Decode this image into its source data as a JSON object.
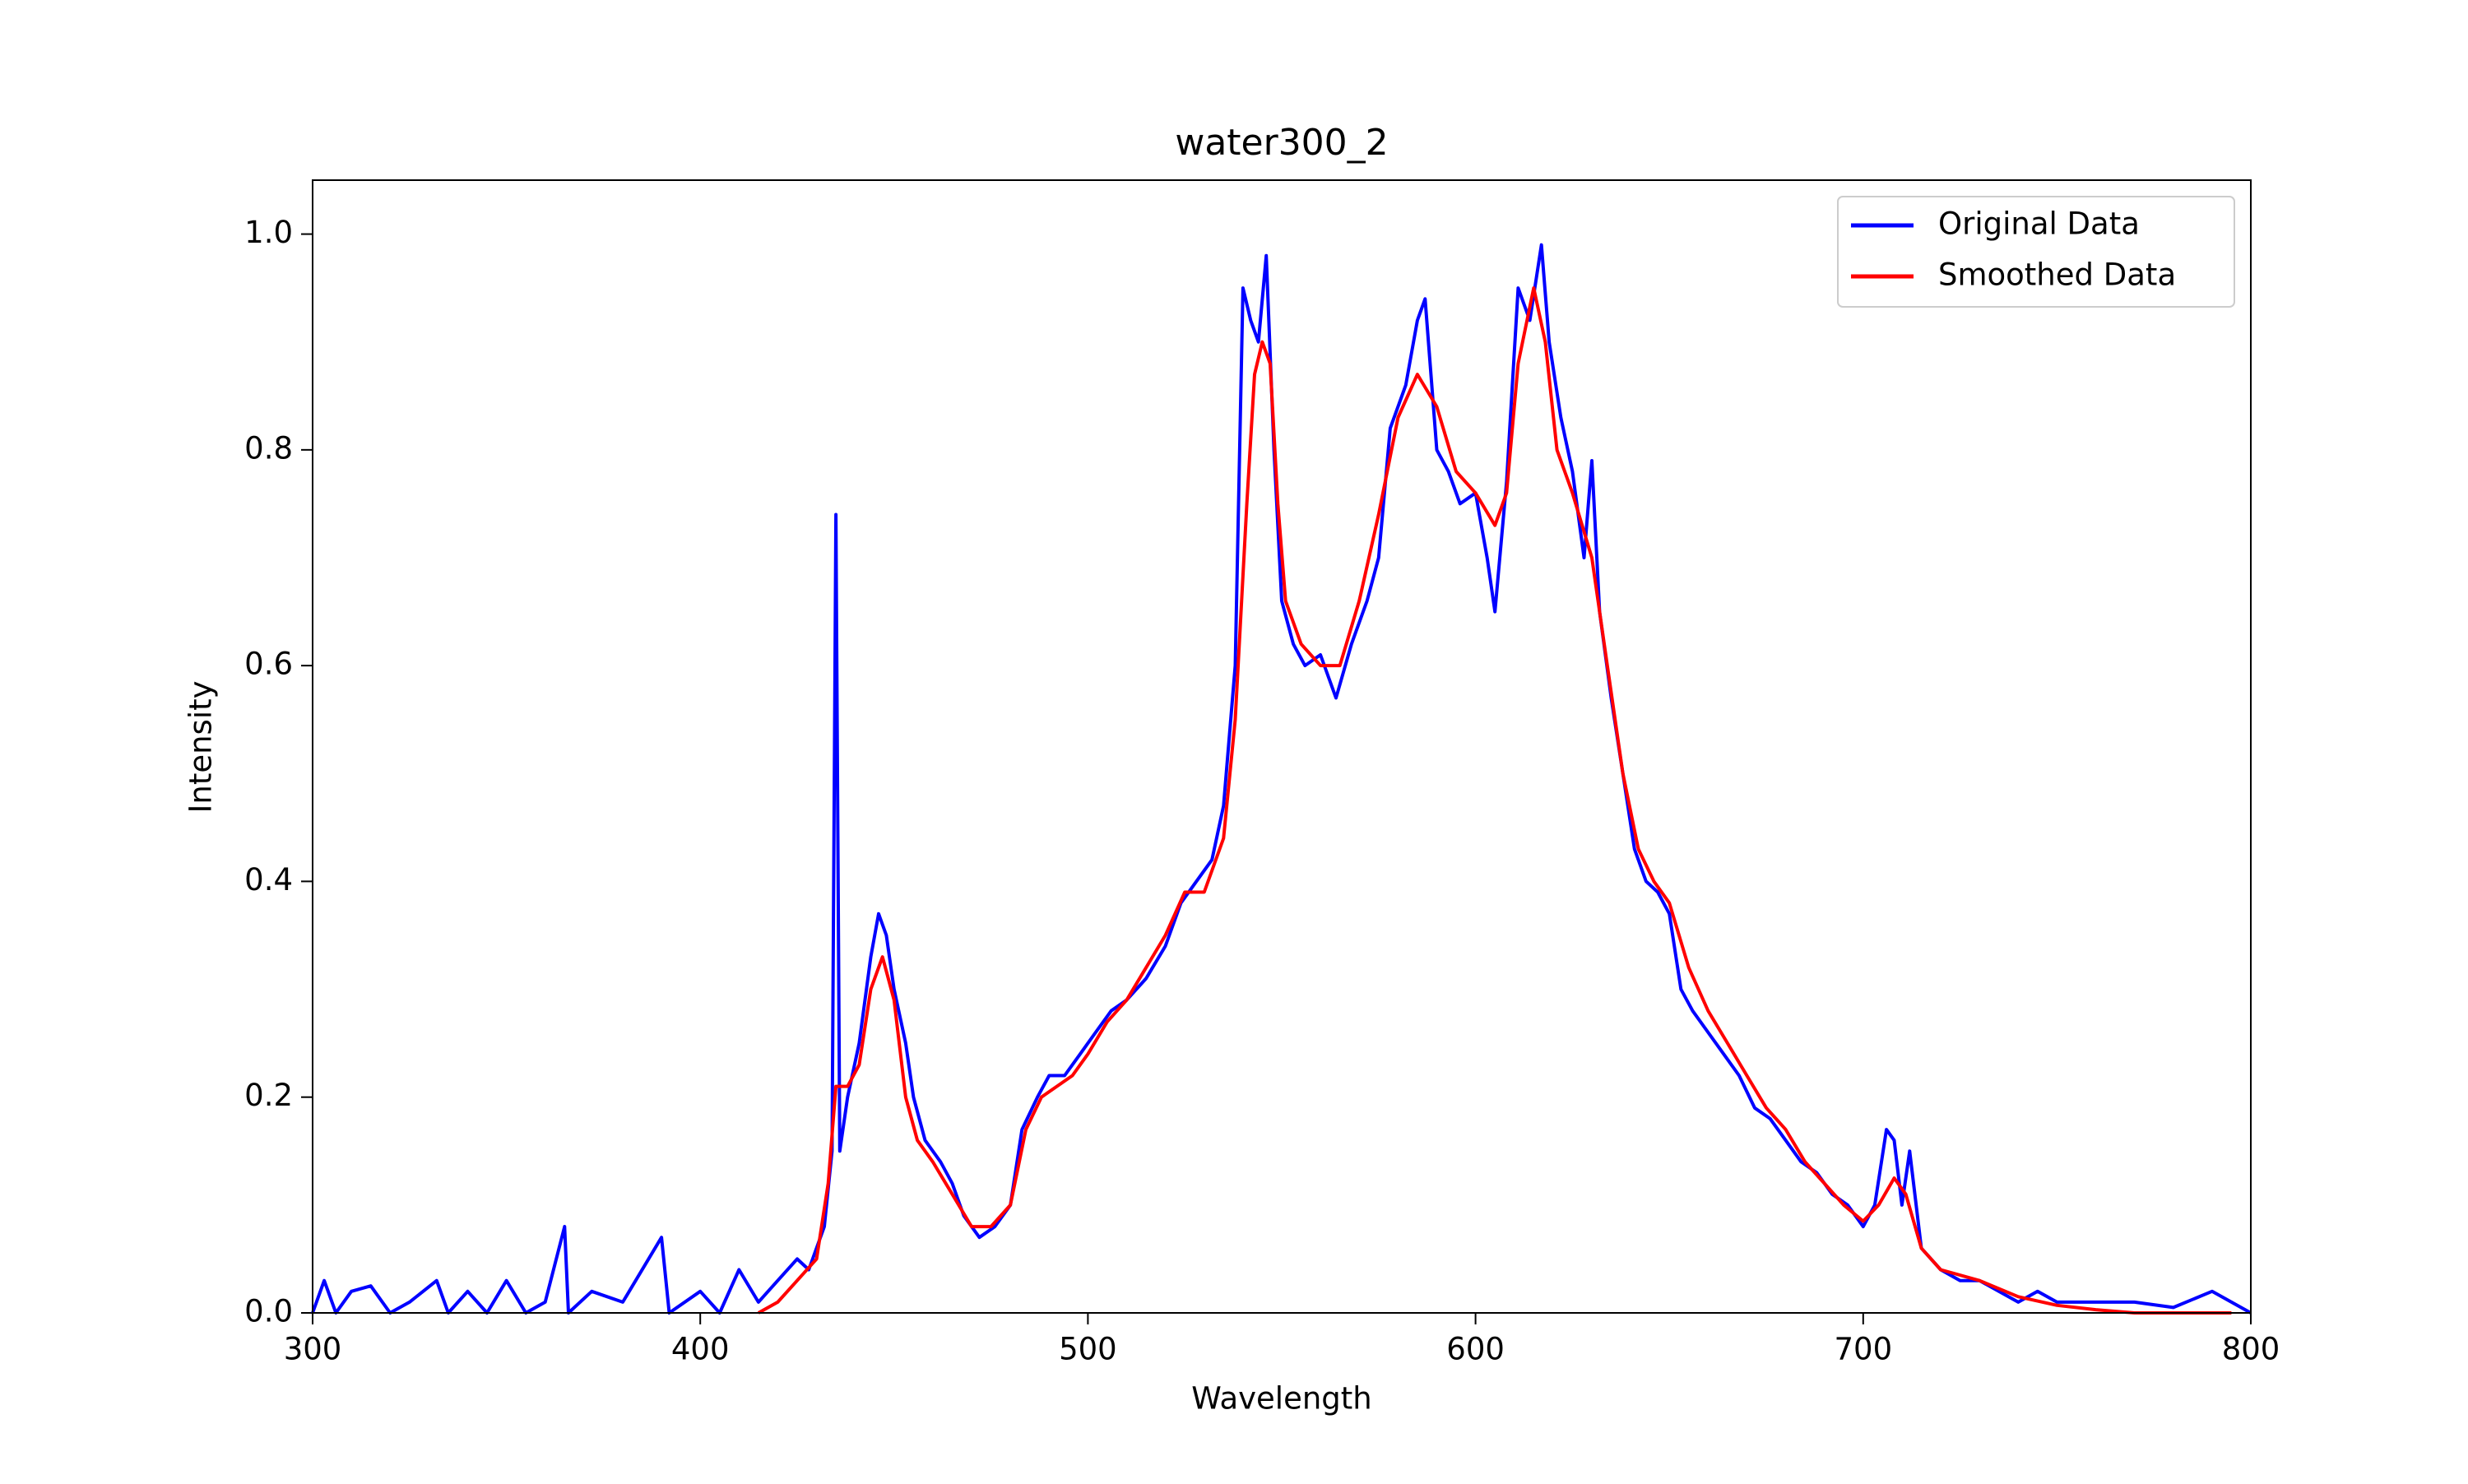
{
  "chart_data": {
    "type": "line",
    "title": "water300_2",
    "x_label": "Wavelength",
    "y_label": "Intensity",
    "xlim": [
      300,
      800
    ],
    "ylim": [
      0,
      1.05
    ],
    "xticks": [
      300,
      400,
      500,
      600,
      700,
      800
    ],
    "yticks": [
      {
        "value": 0,
        "label": "0.0"
      },
      0.2,
      0.4,
      0.6,
      0.8,
      {
        "value": 1,
        "label": "1.0"
      }
    ],
    "legend": "upper right",
    "grid": false,
    "series": [
      {
        "name": "Original Data",
        "color": "#0000ff",
        "x": [
          300,
          303,
          306,
          310,
          315,
          320,
          325,
          332,
          335,
          340,
          345,
          350,
          355,
          360,
          365,
          366,
          372,
          380,
          390,
          392,
          400,
          405,
          410,
          415,
          420,
          425,
          428,
          432,
          434,
          435,
          436,
          438,
          441,
          444,
          446,
          448,
          450,
          453,
          455,
          458,
          462,
          465,
          468,
          472,
          476,
          480,
          483,
          487,
          490,
          494,
          498,
          502,
          506,
          510,
          515,
          520,
          524,
          528,
          532,
          535,
          538,
          540,
          542,
          544,
          546,
          548,
          550,
          553,
          556,
          560,
          564,
          568,
          572,
          575,
          578,
          582,
          585,
          587,
          590,
          593,
          596,
          600,
          603,
          605,
          608,
          611,
          614,
          617,
          619,
          622,
          625,
          628,
          630,
          632,
          635,
          638,
          641,
          644,
          647,
          650,
          653,
          656,
          660,
          664,
          668,
          672,
          676,
          680,
          684,
          688,
          692,
          696,
          700,
          703,
          706,
          708,
          710,
          712,
          715,
          720,
          725,
          730,
          735,
          740,
          745,
          750,
          760,
          770,
          780,
          790,
          800
        ],
        "values": [
          0,
          0.03,
          0,
          0.02,
          0.025,
          0,
          0.01,
          0.03,
          0,
          0.02,
          0,
          0.03,
          0,
          0.01,
          0.08,
          0,
          0.02,
          0.01,
          0.07,
          0,
          0.02,
          0,
          0.04,
          0.01,
          0.03,
          0.05,
          0.04,
          0.08,
          0.15,
          0.74,
          0.15,
          0.2,
          0.25,
          0.33,
          0.37,
          0.35,
          0.3,
          0.25,
          0.2,
          0.16,
          0.14,
          0.12,
          0.09,
          0.07,
          0.08,
          0.1,
          0.17,
          0.2,
          0.22,
          0.22,
          0.24,
          0.26,
          0.28,
          0.29,
          0.31,
          0.34,
          0.38,
          0.4,
          0.42,
          0.47,
          0.6,
          0.95,
          0.92,
          0.9,
          0.98,
          0.8,
          0.66,
          0.62,
          0.6,
          0.61,
          0.57,
          0.62,
          0.66,
          0.7,
          0.82,
          0.86,
          0.92,
          0.94,
          0.8,
          0.78,
          0.75,
          0.76,
          0.7,
          0.65,
          0.77,
          0.95,
          0.92,
          0.99,
          0.9,
          0.83,
          0.78,
          0.7,
          0.79,
          0.65,
          0.57,
          0.5,
          0.43,
          0.4,
          0.39,
          0.37,
          0.3,
          0.28,
          0.26,
          0.24,
          0.22,
          0.19,
          0.18,
          0.16,
          0.14,
          0.13,
          0.11,
          0.1,
          0.08,
          0.1,
          0.17,
          0.16,
          0.1,
          0.15,
          0.06,
          0.04,
          0.03,
          0.03,
          0.02,
          0.01,
          0.02,
          0.01,
          0.01,
          0.01,
          0.005,
          0.02,
          0
        ]
      },
      {
        "name": "Smoothed Data",
        "color": "#ff0000",
        "x": [
          415,
          420,
          425,
          430,
          433,
          435,
          438,
          441,
          444,
          447,
          450,
          453,
          456,
          460,
          465,
          470,
          475,
          480,
          484,
          488,
          492,
          496,
          500,
          505,
          510,
          515,
          520,
          525,
          530,
          535,
          538,
          541,
          543,
          545,
          547,
          549,
          551,
          555,
          560,
          565,
          570,
          575,
          580,
          585,
          590,
          595,
          600,
          605,
          608,
          611,
          615,
          618,
          621,
          625,
          630,
          634,
          638,
          642,
          646,
          650,
          655,
          660,
          665,
          670,
          675,
          680,
          685,
          690,
          695,
          700,
          704,
          708,
          711,
          715,
          720,
          730,
          740,
          750,
          760,
          770,
          790,
          795
        ],
        "values": [
          0,
          0.01,
          0.03,
          0.05,
          0.12,
          0.21,
          0.21,
          0.23,
          0.3,
          0.33,
          0.29,
          0.2,
          0.16,
          0.14,
          0.11,
          0.08,
          0.08,
          0.1,
          0.17,
          0.2,
          0.21,
          0.22,
          0.24,
          0.27,
          0.29,
          0.32,
          0.35,
          0.39,
          0.39,
          0.44,
          0.55,
          0.75,
          0.87,
          0.9,
          0.88,
          0.75,
          0.66,
          0.62,
          0.6,
          0.6,
          0.66,
          0.74,
          0.83,
          0.87,
          0.84,
          0.78,
          0.76,
          0.73,
          0.76,
          0.88,
          0.95,
          0.9,
          0.8,
          0.76,
          0.7,
          0.6,
          0.5,
          0.43,
          0.4,
          0.38,
          0.32,
          0.28,
          0.25,
          0.22,
          0.19,
          0.17,
          0.14,
          0.12,
          0.1,
          0.085,
          0.1,
          0.125,
          0.11,
          0.06,
          0.04,
          0.03,
          0.015,
          0.007,
          0.003,
          0,
          0,
          0
        ]
      }
    ]
  }
}
